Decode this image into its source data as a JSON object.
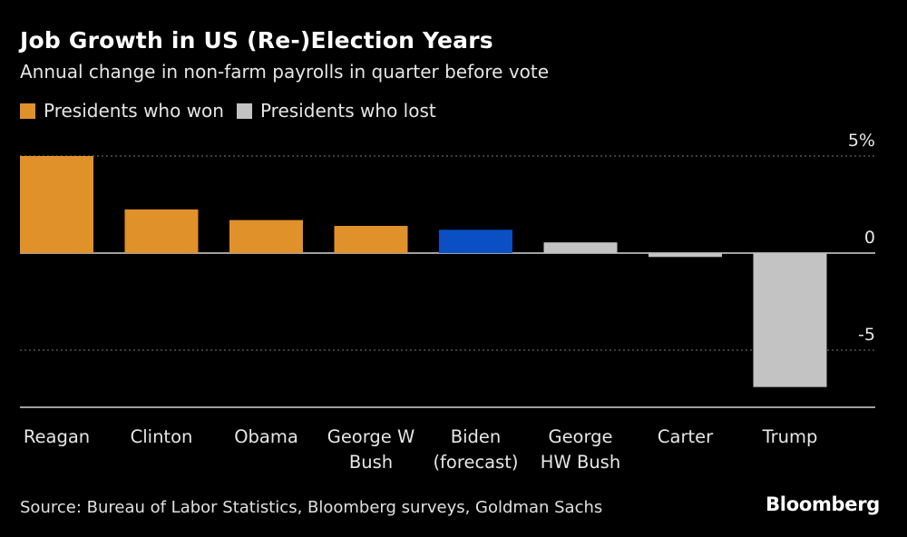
{
  "title": "Job Growth in US (Re-)Election Years",
  "subtitle": "Annual change in non-farm payrolls in quarter before vote",
  "source": "Source: Bureau of Labor Statistics, Bloomberg surveys, Goldman Sachs",
  "brand": "Bloomberg",
  "legend": [
    {
      "label": "Presidents who won",
      "color": "#e0912a"
    },
    {
      "label": "Presidents who lost",
      "color": "#c3c3c3"
    }
  ],
  "colors": {
    "won": "#e0912a",
    "lost": "#c3c3c3",
    "forecast": "#0a4fc4",
    "background": "#000000"
  },
  "chart_data": {
    "type": "bar",
    "categories": [
      [
        "Reagan"
      ],
      [
        "Clinton"
      ],
      [
        "Obama"
      ],
      [
        "George W",
        "Bush"
      ],
      [
        "Biden",
        "(forecast)"
      ],
      [
        "George",
        "HW Bush"
      ],
      [
        "Carter"
      ],
      [
        "Trump"
      ]
    ],
    "values": [
      5.0,
      2.25,
      1.7,
      1.4,
      1.2,
      0.55,
      -0.2,
      -6.9
    ],
    "groups": [
      "won",
      "won",
      "won",
      "won",
      "forecast",
      "lost",
      "lost",
      "lost"
    ],
    "ylim": [
      -8,
      5
    ],
    "yticks": [
      {
        "value": 5,
        "label": "5%"
      },
      {
        "value": 0,
        "label": "0"
      },
      {
        "value": -5,
        "label": "-5"
      }
    ],
    "grid": true,
    "legend_position": "top-left"
  }
}
